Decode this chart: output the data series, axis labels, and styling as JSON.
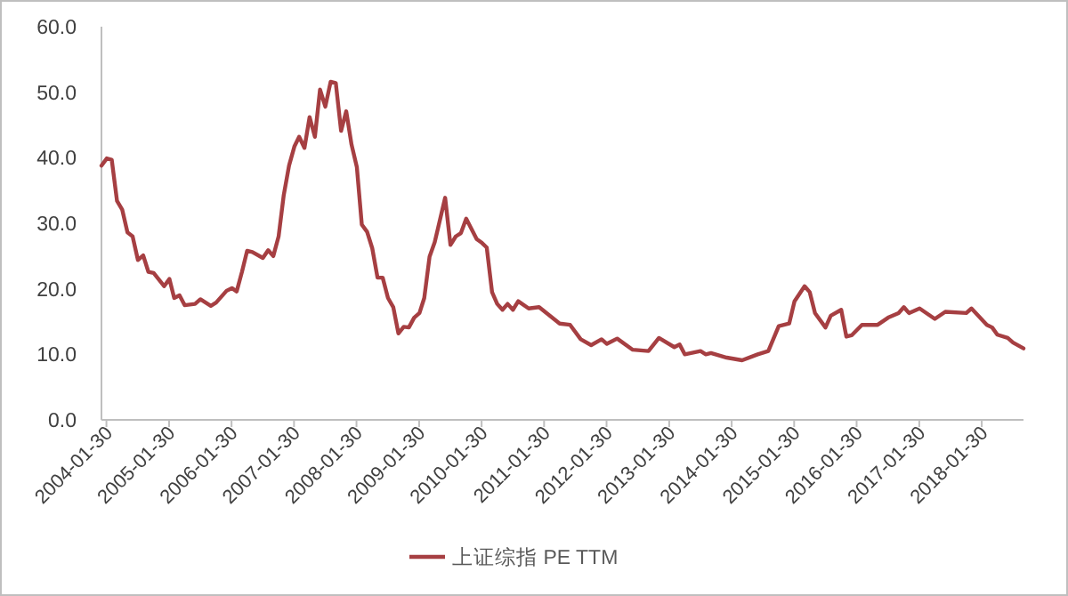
{
  "chart_data": {
    "type": "line",
    "legend": "bottom",
    "line_style": "solid",
    "grid": false,
    "xlim": [
      "2004-01",
      "2018-10"
    ],
    "xticks": [
      "2004-01-30",
      "2005-01-30",
      "2006-01-30",
      "2007-01-30",
      "2008-01-30",
      "2009-01-30",
      "2010-01-30",
      "2011-01-30",
      "2012-01-30",
      "2013-01-30",
      "2014-01-30",
      "2015-01-30",
      "2016-01-30",
      "2017-01-30",
      "2018-01-30"
    ],
    "ylim": [
      0,
      60
    ],
    "yticks": [
      {
        "value": 0,
        "label": "0.0"
      },
      {
        "value": 10,
        "label": "10.0"
      },
      {
        "value": 20,
        "label": "20.0"
      },
      {
        "value": 30,
        "label": "30.0"
      },
      {
        "value": 40,
        "label": "40.0"
      },
      {
        "value": 50,
        "label": "50.0"
      },
      {
        "value": 60,
        "label": "60.0"
      }
    ],
    "x": [
      "2004-01",
      "2004-02",
      "2004-03",
      "2004-04",
      "2004-05",
      "2004-06",
      "2004-07",
      "2004-08",
      "2004-09",
      "2004-10",
      "2004-11",
      "2005-01",
      "2005-02",
      "2005-03",
      "2005-04",
      "2005-05",
      "2005-07",
      "2005-08",
      "2005-10",
      "2005-11",
      "2006-01",
      "2006-02",
      "2006-03",
      "2006-04",
      "2006-05",
      "2006-06",
      "2006-08",
      "2006-09",
      "2006-10",
      "2006-11",
      "2006-12",
      "2007-01",
      "2007-02",
      "2007-03",
      "2007-04",
      "2007-05",
      "2007-06",
      "2007-07",
      "2007-08",
      "2007-09",
      "2007-10",
      "2007-11",
      "2007-12",
      "2008-01",
      "2008-02",
      "2008-03",
      "2008-04",
      "2008-05",
      "2008-06",
      "2008-07",
      "2008-08",
      "2008-09",
      "2008-10",
      "2008-11",
      "2008-12",
      "2009-01",
      "2009-02",
      "2009-03",
      "2009-04",
      "2009-05",
      "2009-07",
      "2009-08",
      "2009-09",
      "2009-10",
      "2009-11",
      "2010-01",
      "2010-02",
      "2010-03",
      "2010-04",
      "2010-05",
      "2010-06",
      "2010-07",
      "2010-08",
      "2010-09",
      "2010-11",
      "2011-01",
      "2011-05",
      "2011-07",
      "2011-09",
      "2011-11",
      "2012-01",
      "2012-02",
      "2012-04",
      "2012-07",
      "2012-10",
      "2012-12",
      "2013-03",
      "2013-04",
      "2013-05",
      "2013-08",
      "2013-09",
      "2013-10",
      "2014-01",
      "2014-04",
      "2014-07",
      "2014-09",
      "2014-11",
      "2015-01",
      "2015-02",
      "2015-04",
      "2015-05",
      "2015-06",
      "2015-08",
      "2015-09",
      "2015-11",
      "2015-12",
      "2016-01",
      "2016-03",
      "2016-06",
      "2016-08",
      "2016-10",
      "2016-11",
      "2016-12",
      "2017-02",
      "2017-05",
      "2017-07",
      "2017-11",
      "2017-12",
      "2018-03",
      "2018-04",
      "2018-05",
      "2018-07",
      "2018-08",
      "2018-10"
    ],
    "series": [
      {
        "name": "上证综指 PE TTM",
        "color": "#a63f42",
        "values": [
          38.8,
          39.9,
          39.7,
          33.4,
          32.1,
          28.6,
          28.0,
          24.4,
          25.1,
          22.6,
          22.4,
          20.4,
          21.5,
          18.6,
          19.0,
          17.5,
          17.7,
          18.4,
          17.4,
          17.9,
          19.7,
          20.1,
          19.6,
          22.6,
          25.8,
          25.6,
          24.7,
          25.9,
          25.0,
          28.0,
          34.3,
          38.8,
          41.7,
          43.2,
          41.5,
          46.2,
          43.2,
          50.4,
          47.8,
          51.6,
          51.4,
          44.1,
          47.1,
          42.0,
          38.6,
          29.8,
          28.7,
          26.2,
          21.7,
          21.7,
          18.6,
          17.2,
          13.2,
          14.2,
          14.1,
          15.6,
          16.3,
          18.6,
          24.9,
          27.1,
          33.9,
          26.7,
          28.0,
          28.5,
          30.7,
          27.6,
          27.0,
          26.3,
          19.5,
          17.7,
          16.8,
          17.7,
          16.8,
          18.1,
          17.0,
          17.2,
          14.7,
          14.5,
          12.3,
          11.4,
          12.3,
          11.6,
          12.4,
          10.7,
          10.5,
          12.5,
          11.1,
          11.5,
          10.0,
          10.5,
          10.0,
          10.2,
          9.5,
          9.1,
          10.0,
          10.5,
          14.3,
          14.7,
          18.1,
          20.4,
          19.5,
          16.3,
          14.1,
          15.9,
          16.8,
          12.7,
          12.9,
          14.5,
          14.5,
          15.6,
          16.3,
          17.2,
          16.3,
          17.0,
          15.4,
          16.5,
          16.3,
          17.0,
          14.5,
          14.1,
          13.0,
          12.5,
          11.8,
          10.9
        ]
      }
    ]
  }
}
